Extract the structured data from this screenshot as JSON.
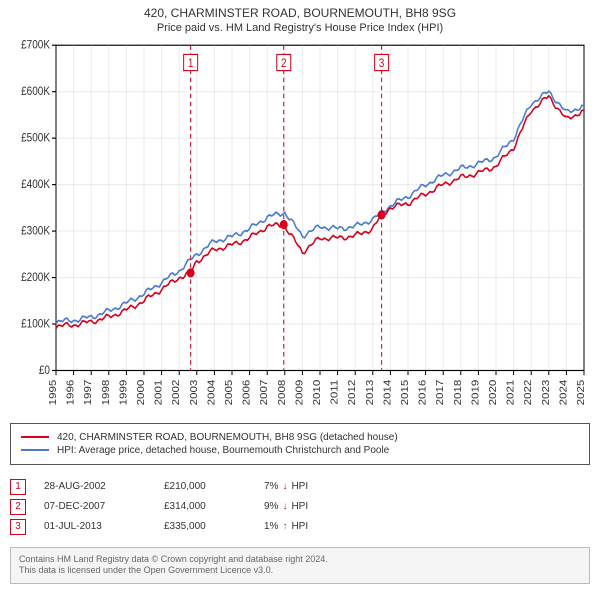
{
  "header": {
    "title": "420, CHARMINSTER ROAD, BOURNEMOUTH, BH8 9SG",
    "subtitle": "Price paid vs. HM Land Registry's House Price Index (HPI)"
  },
  "chart": {
    "type": "line",
    "background_color": "#ffffff",
    "grid_color": "#cccccc",
    "grid_opacity": 0.35,
    "axis_color": "#000000",
    "xlim": [
      1995,
      2025
    ],
    "ylim": [
      0,
      700000
    ],
    "xtick_step": 1,
    "ytick_step": 100000,
    "ytick_labels": [
      "£0",
      "£100K",
      "£200K",
      "£300K",
      "£400K",
      "£500K",
      "£600K",
      "£700K"
    ],
    "xtick_labels": [
      "1995",
      "1996",
      "1997",
      "1998",
      "1999",
      "2000",
      "2001",
      "2002",
      "2003",
      "2004",
      "2005",
      "2006",
      "2007",
      "2008",
      "2009",
      "2010",
      "2011",
      "2012",
      "2013",
      "2014",
      "2015",
      "2016",
      "2017",
      "2018",
      "2019",
      "2020",
      "2021",
      "2022",
      "2023",
      "2024",
      "2025"
    ],
    "series": [
      {
        "name": "price_paid",
        "color": "#d9001b",
        "line_width": 1.5,
        "years": [
          1995,
          1996,
          1997,
          1998,
          1999,
          2000,
          2001,
          2002,
          2002.65,
          2003,
          2004,
          2005,
          2006,
          2007,
          2007.94,
          2008,
          2009,
          2010,
          2011,
          2012,
          2013,
          2013.5,
          2014,
          2015,
          2016,
          2017,
          2018,
          2019,
          2020,
          2021,
          2022,
          2023,
          2024,
          2025
        ],
        "values": [
          95000,
          98000,
          105000,
          115000,
          130000,
          150000,
          175000,
          200000,
          210000,
          235000,
          260000,
          270000,
          285000,
          310000,
          314000,
          310000,
          255000,
          285000,
          285000,
          290000,
          305000,
          335000,
          350000,
          360000,
          380000,
          400000,
          415000,
          425000,
          440000,
          480000,
          560000,
          590000,
          540000,
          560000
        ]
      },
      {
        "name": "hpi",
        "color": "#4a7bd4",
        "line_width": 1.5,
        "years": [
          1995,
          1996,
          1997,
          1998,
          1999,
          2000,
          2001,
          2002,
          2003,
          2004,
          2005,
          2006,
          2007,
          2008,
          2009,
          2010,
          2011,
          2012,
          2013,
          2014,
          2015,
          2016,
          2017,
          2018,
          2019,
          2020,
          2021,
          2022,
          2023,
          2024,
          2025
        ],
        "values": [
          105000,
          108000,
          115000,
          128000,
          145000,
          165000,
          190000,
          215000,
          250000,
          278000,
          288000,
          305000,
          330000,
          340000,
          290000,
          310000,
          305000,
          310000,
          325000,
          355000,
          375000,
          400000,
          420000,
          435000,
          445000,
          460000,
          500000,
          575000,
          600000,
          555000,
          570000
        ]
      }
    ],
    "markers": [
      {
        "label": "1",
        "year": 2002.65,
        "price": 210000,
        "color": "#d9001b",
        "dash": "4,3"
      },
      {
        "label": "2",
        "year": 2007.94,
        "price": 314000,
        "color": "#d9001b",
        "dash": "4,3"
      },
      {
        "label": "3",
        "year": 2013.5,
        "price": 335000,
        "color": "#d9001b",
        "dash": "4,3"
      }
    ],
    "marker_badge": {
      "size": 14,
      "border_width": 1,
      "font_size": 10,
      "fill": "#ffffff"
    },
    "marker_point": {
      "radius": 4,
      "fill": "#d9001b"
    }
  },
  "legend": {
    "items": [
      {
        "color": "#d9001b",
        "label": "420, CHARMINSTER ROAD, BOURNEMOUTH, BH8 9SG (detached house)"
      },
      {
        "color": "#4a7bd4",
        "label": "HPI: Average price, detached house, Bournemouth Christchurch and Poole"
      }
    ]
  },
  "transactions": [
    {
      "badge": "1",
      "badge_color": "#d9001b",
      "date": "28-AUG-2002",
      "price": "£210,000",
      "diff_pct": "7%",
      "arrow": "↓",
      "arrow_color": "#d9001b",
      "diff_label": "HPI"
    },
    {
      "badge": "2",
      "badge_color": "#d9001b",
      "date": "07-DEC-2007",
      "price": "£314,000",
      "diff_pct": "9%",
      "arrow": "↓",
      "arrow_color": "#d9001b",
      "diff_label": "HPI"
    },
    {
      "badge": "3",
      "badge_color": "#d9001b",
      "date": "01-JUL-2013",
      "price": "£335,000",
      "diff_pct": "1%",
      "arrow": "↑",
      "arrow_color": "#2a8a2a",
      "diff_label": "HPI"
    }
  ],
  "footer": {
    "line1": "Contains HM Land Registry data © Crown copyright and database right 2024.",
    "line2": "This data is licensed under the Open Government Licence v3.0."
  }
}
